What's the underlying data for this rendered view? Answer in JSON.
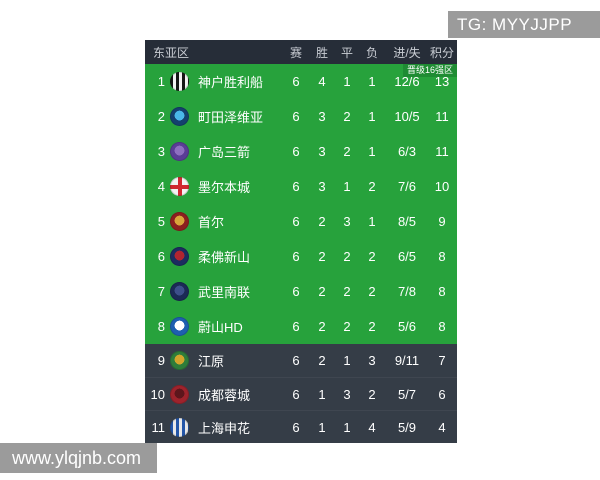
{
  "overlays": {
    "tg": "TG: MYYJJPP",
    "site": "www.ylqjnb.com"
  },
  "header": {
    "zone": "东亚区",
    "columns": [
      "赛",
      "胜",
      "平",
      "负",
      "进/失",
      "积分"
    ]
  },
  "qualification_badge": "晋级16强区",
  "rows": [
    {
      "rank": "1",
      "team": "神户胜利船",
      "played": "6",
      "won": "4",
      "drawn": "1",
      "lost": "1",
      "goals": "12/6",
      "points": "13",
      "section": "qualify",
      "logo": {
        "pattern": "stripes",
        "base": "#161616",
        "accent": "#f2f2f2"
      }
    },
    {
      "rank": "2",
      "team": "町田泽维亚",
      "played": "6",
      "won": "3",
      "drawn": "2",
      "lost": "1",
      "goals": "10/5",
      "points": "11",
      "section": "qualify",
      "logo": {
        "pattern": "ring",
        "base": "#14406e",
        "accent": "#4ab8e8"
      }
    },
    {
      "rank": "3",
      "team": "广岛三箭",
      "played": "6",
      "won": "3",
      "drawn": "2",
      "lost": "1",
      "goals": "6/3",
      "points": "11",
      "section": "qualify",
      "logo": {
        "pattern": "ring",
        "base": "#5a3d96",
        "accent": "#8e6fc0"
      }
    },
    {
      "rank": "4",
      "team": "墨尔本城",
      "played": "6",
      "won": "3",
      "drawn": "1",
      "lost": "2",
      "goals": "7/6",
      "points": "10",
      "section": "qualify",
      "logo": {
        "pattern": "cross",
        "base": "#f2f2f2",
        "accent": "#d02830"
      }
    },
    {
      "rank": "5",
      "team": "首尔",
      "played": "6",
      "won": "2",
      "drawn": "3",
      "lost": "1",
      "goals": "8/5",
      "points": "9",
      "section": "qualify",
      "logo": {
        "pattern": "ring",
        "base": "#8c1f1f",
        "accent": "#d9a43a"
      }
    },
    {
      "rank": "6",
      "team": "柔佛新山",
      "played": "6",
      "won": "2",
      "drawn": "2",
      "lost": "2",
      "goals": "6/5",
      "points": "8",
      "section": "qualify",
      "logo": {
        "pattern": "ring",
        "base": "#1c2c60",
        "accent": "#b02530"
      }
    },
    {
      "rank": "7",
      "team": "武里南联",
      "played": "6",
      "won": "2",
      "drawn": "2",
      "lost": "2",
      "goals": "7/8",
      "points": "8",
      "section": "qualify",
      "logo": {
        "pattern": "ring",
        "base": "#1b2a55",
        "accent": "#3d4f8a"
      }
    },
    {
      "rank": "8",
      "team": "蔚山HD",
      "played": "6",
      "won": "2",
      "drawn": "2",
      "lost": "2",
      "goals": "5/6",
      "points": "8",
      "section": "qualify",
      "logo": {
        "pattern": "ring",
        "base": "#1e5fb0",
        "accent": "#ffffff"
      }
    },
    {
      "rank": "9",
      "team": "江原",
      "played": "6",
      "won": "2",
      "drawn": "1",
      "lost": "3",
      "goals": "9/11",
      "points": "7",
      "section": "out",
      "logo": {
        "pattern": "ring",
        "base": "#2f7d3a",
        "accent": "#d3a52c"
      }
    },
    {
      "rank": "10",
      "team": "成都蓉城",
      "played": "6",
      "won": "1",
      "drawn": "3",
      "lost": "2",
      "goals": "5/7",
      "points": "6",
      "section": "out",
      "logo": {
        "pattern": "ring",
        "base": "#9e232c",
        "accent": "#5d161c"
      }
    },
    {
      "rank": "11",
      "team": "上海申花",
      "played": "6",
      "won": "1",
      "drawn": "1",
      "lost": "4",
      "goals": "5/9",
      "points": "4",
      "section": "out",
      "logo": {
        "pattern": "stripes",
        "base": "#2456a8",
        "accent": "#e8e8e8"
      }
    }
  ],
  "colors": {
    "qualify_bg": "#27a23c",
    "out_bg": "#353d47",
    "header_bg": "#262d38",
    "badge_bg": "#1f8c33",
    "overlay_bg": "#9b9b9b"
  }
}
